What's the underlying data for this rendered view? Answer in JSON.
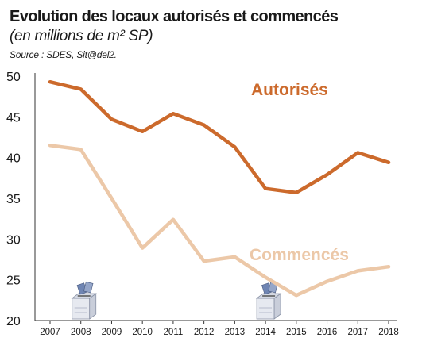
{
  "title": "Evolution des locaux autorisés et commencés",
  "subtitle": "(en millions de m² SP)",
  "source": "Source : SDES, Sit@del2.",
  "chart_data": {
    "type": "line",
    "x": [
      "2007",
      "2008",
      "2009",
      "2010",
      "2011",
      "2012",
      "2013",
      "2014",
      "2015",
      "2016",
      "2017",
      "2018"
    ],
    "ylim": [
      20,
      50
    ],
    "yticks": [
      20,
      25,
      30,
      35,
      40,
      45,
      50
    ],
    "grid": false,
    "series": [
      {
        "name": "Autorisés",
        "color": "#cc6a2c",
        "values": [
          49.3,
          48.4,
          44.7,
          43.2,
          45.4,
          44.0,
          41.3,
          36.2,
          35.7,
          37.9,
          40.6,
          39.4
        ]
      },
      {
        "name": "Commencés",
        "color": "#ecc8a8",
        "values": [
          41.5,
          41.0,
          35.0,
          28.9,
          32.4,
          27.3,
          27.8,
          25.3,
          23.1,
          24.8,
          26.1,
          26.6
        ]
      }
    ],
    "annotations": [
      {
        "type": "ballot-box-icon",
        "x": "2008"
      },
      {
        "type": "ballot-box-icon",
        "x": "2014"
      }
    ]
  }
}
